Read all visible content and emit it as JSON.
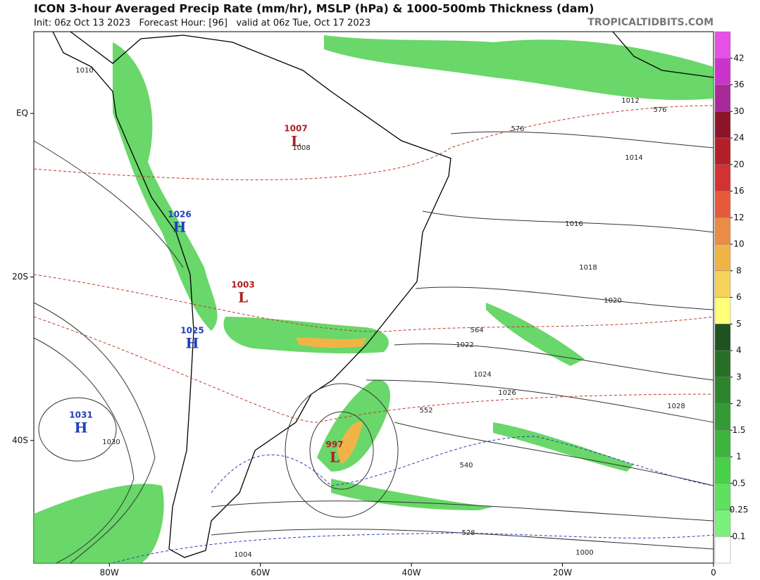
{
  "header": {
    "title": "ICON 3-hour Averaged Precip Rate (mm/hr), MSLP (hPa) & 1000-500mb Thickness (dam)",
    "subtitle": "Init: 06z Oct 13 2023   Forecast Hour: [96]   valid at 06z Tue, Oct 17 2023",
    "source": "TROPICALTIDBITS.COM"
  },
  "map": {
    "xlim": [
      -90,
      0
    ],
    "ylim": [
      -55,
      10
    ],
    "xticks": [
      {
        "value": -80,
        "label": "80W"
      },
      {
        "value": -60,
        "label": "60W"
      },
      {
        "value": -40,
        "label": "40W"
      },
      {
        "value": -20,
        "label": "20W"
      },
      0
    ],
    "yticks": [
      {
        "value": 0,
        "label": "EQ"
      },
      {
        "value": -20,
        "label": "20S"
      },
      {
        "value": -40,
        "label": "40S"
      }
    ],
    "pressure_centers": [
      {
        "label": "H",
        "value": 1026,
        "color": "#1f3fbf"
      },
      {
        "label": "H",
        "value": 1025,
        "color": "#1f3fbf"
      },
      {
        "label": "H",
        "value": 1031,
        "color": "#1f3fbf"
      },
      {
        "label": "L",
        "value": 1007,
        "color": "#b02020"
      },
      {
        "label": "L",
        "value": 1003,
        "color": "#b02020"
      },
      {
        "label": "L",
        "value": 997,
        "color": "#b02020"
      }
    ],
    "isobar_labels": [
      1010,
      1012,
      1014,
      1016,
      1018,
      1020,
      1022,
      1024,
      1026,
      1028,
      1030,
      1008,
      1004,
      1000
    ],
    "thickness_labels": [
      {
        "value": 576,
        "color": "#c0392b"
      },
      {
        "value": 576,
        "color": "#c0392b"
      },
      {
        "value": 564,
        "color": "#c0392b"
      },
      {
        "value": 552,
        "color": "#c0392b"
      },
      {
        "value": 540,
        "color": "#2b3fbf"
      },
      {
        "value": 528,
        "color": "#2b3fbf"
      }
    ]
  },
  "colorbar": {
    "ticks": [
      0.1,
      0.25,
      0.5,
      1,
      1.5,
      2,
      3,
      4,
      5,
      6,
      8,
      10,
      12,
      16,
      20,
      24,
      30,
      36,
      42
    ],
    "colors": [
      "#ffffff",
      "#7cf07c",
      "#5fe05f",
      "#48d048",
      "#3db43d",
      "#349a34",
      "#2d842d",
      "#276e27",
      "#1f521f",
      "#ffff78",
      "#f5d25a",
      "#f0b446",
      "#eb8c46",
      "#e65a3c",
      "#d23232",
      "#b41e28",
      "#8c1428",
      "#a82a98",
      "#cc33cc",
      "#e650e6"
    ]
  }
}
